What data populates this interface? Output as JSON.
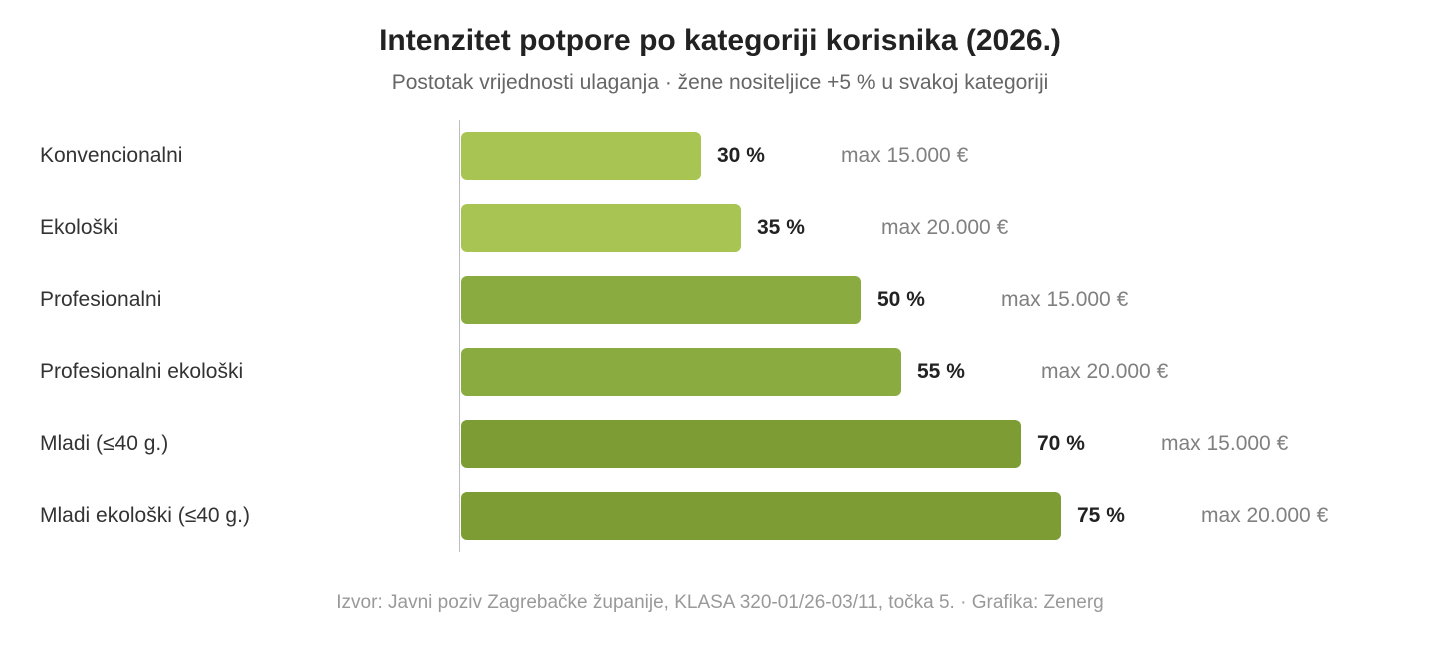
{
  "chart_data": {
    "type": "bar",
    "orientation": "horizontal",
    "title": "Intenzitet potpore po kategoriji korisnika (2026.)",
    "subtitle": "Postotak vrijednosti ulaganja · žene nositeljice +5 % u svakoj kategoriji",
    "categories": [
      "Konvencionalni",
      "Ekološki",
      "Profesionalni",
      "Profesionalni ekološki",
      "Mladi (≤40 g.)",
      "Mladi ekološki (≤40 g.)"
    ],
    "values": [
      30,
      35,
      50,
      55,
      70,
      75
    ],
    "value_labels": [
      "30 %",
      "35 %",
      "50 %",
      "55 %",
      "70 %",
      "75 %"
    ],
    "max_labels": [
      "max 15.000 €",
      "max 20.000 €",
      "max 15.000 €",
      "max 20.000 €",
      "max 15.000 €",
      "max 20.000 €"
    ],
    "bar_colors": [
      "#a8c452",
      "#a8c452",
      "#8aab3f",
      "#8aab3f",
      "#7d9c34",
      "#7d9c34"
    ],
    "xlim": [
      0,
      100
    ],
    "grid": false,
    "source": "Izvor: Javni poziv Zagrebačke županije, KLASA 320-01/26-03/11, točka 5. · Grafika: Zenerg"
  }
}
